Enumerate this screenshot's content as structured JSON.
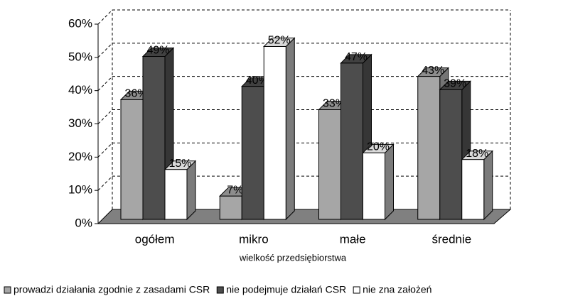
{
  "chart_data": {
    "type": "bar3d",
    "categories": [
      "ogółem",
      "mikro",
      "małe",
      "średnie"
    ],
    "x_label": "wielkość przedsiębiorstwa",
    "series": [
      {
        "name": "prowadzi działania zgodnie z zasadami CSR",
        "color": "#a6a6a6",
        "values": [
          36,
          7,
          33,
          43
        ],
        "value_labels": [
          "36%",
          "7%",
          "33%",
          "43%"
        ]
      },
      {
        "name": "nie podejmuje działań CSR",
        "color": "#4d4d4d",
        "values": [
          49,
          40,
          47,
          39
        ],
        "value_labels": [
          "49%",
          "40%",
          "47%",
          "39%"
        ]
      },
      {
        "name": "nie zna założeń",
        "color": "#ffffff",
        "values": [
          15,
          52,
          20,
          18
        ],
        "value_labels": [
          "15%",
          "52%",
          "20%",
          "18%"
        ]
      }
    ],
    "ylim": [
      0,
      60
    ],
    "yticks": [
      {
        "value": 0,
        "label": "0%"
      },
      {
        "value": 10,
        "label": "10%"
      },
      {
        "value": 20,
        "label": "20%"
      },
      {
        "value": 30,
        "label": "30%"
      },
      {
        "value": 40,
        "label": "40%"
      },
      {
        "value": 50,
        "label": "50%"
      },
      {
        "value": 60,
        "label": "60%"
      }
    ],
    "grid": true,
    "legend": "bottom"
  }
}
